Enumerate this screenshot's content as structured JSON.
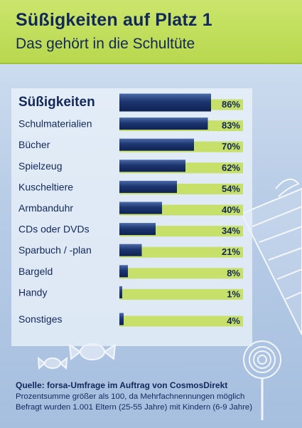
{
  "header": {
    "title": "Süßigkeiten auf Platz 1",
    "subtitle": "Das gehört in die Schultüte"
  },
  "chart_data": {
    "type": "bar",
    "title": "Süßigkeiten auf Platz 1",
    "subtitle": "Das gehört in die Schultüte",
    "categories": [
      "Süßigkeiten",
      "Schulmaterialien",
      "Bücher",
      "Spielzeug",
      "Kuscheltiere",
      "Armbanduhr",
      "CDs oder DVDs",
      "Sparbuch / -plan",
      "Bargeld",
      "Handy",
      "Sonstiges"
    ],
    "values": [
      86,
      83,
      70,
      62,
      54,
      40,
      34,
      21,
      8,
      1,
      4
    ],
    "value_labels": [
      "86%",
      "83%",
      "70%",
      "62%",
      "54%",
      "40%",
      "34%",
      "21%",
      "8%",
      "1%",
      "4%"
    ],
    "unit": "%",
    "xlim": [
      0,
      100
    ],
    "orientation": "horizontal",
    "grid": false,
    "colors": {
      "bar_dark": "#13285a",
      "bar_mid": "#3b5a9a",
      "track": "#c7e06a",
      "label": "#13285a"
    }
  },
  "footer": {
    "source": "Quelle: forsa-Umfrage im Auftrag von CosmosDirekt",
    "note1": "Prozentsumme größer als 100, da Mehrfachnennungen möglich",
    "note2": "Befragt wurden 1.001 Eltern (25-55 Jahre) mit Kindern (6-9 Jahre)"
  }
}
